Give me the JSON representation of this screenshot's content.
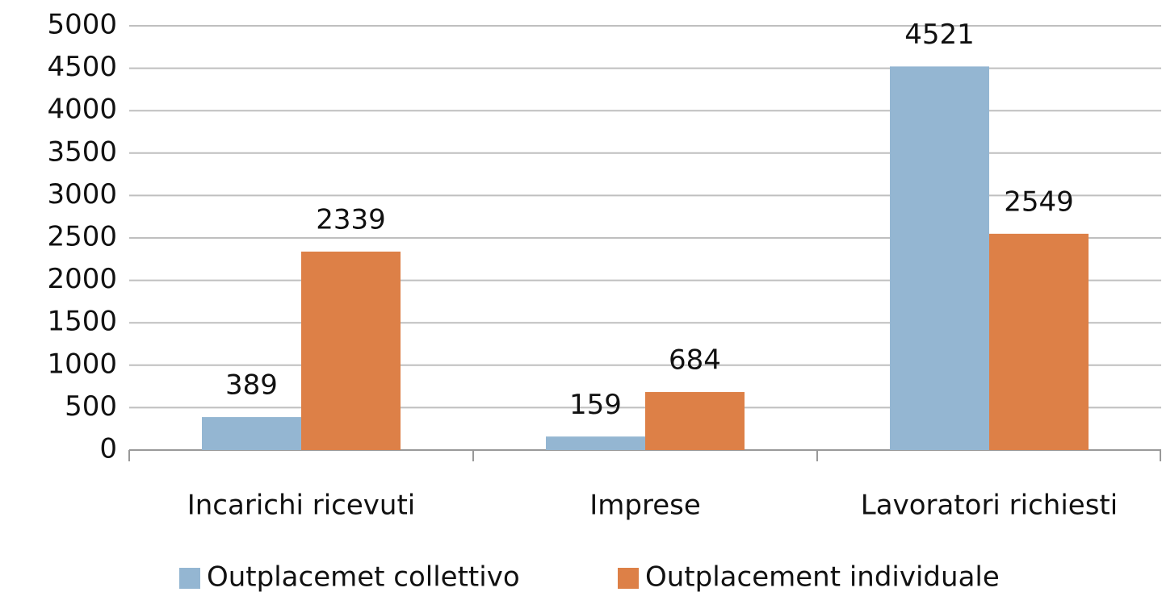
{
  "chart_data": {
    "type": "bar",
    "categories": [
      "Incarichi ricevuti",
      "Imprese",
      "Lavoratori richiesti"
    ],
    "series": [
      {
        "name": "Outplacemet collettivo",
        "color": "#94b6d2",
        "values": [
          389,
          159,
          4521
        ]
      },
      {
        "name": "Outplacement individuale",
        "color": "#dd8047",
        "values": [
          2339,
          684,
          2549
        ]
      }
    ],
    "ylim": [
      0,
      5000
    ],
    "yticks": [
      0,
      500,
      1000,
      1500,
      2000,
      2500,
      3000,
      3500,
      4000,
      4500,
      5000
    ],
    "grid": true,
    "legend": "bottom"
  }
}
